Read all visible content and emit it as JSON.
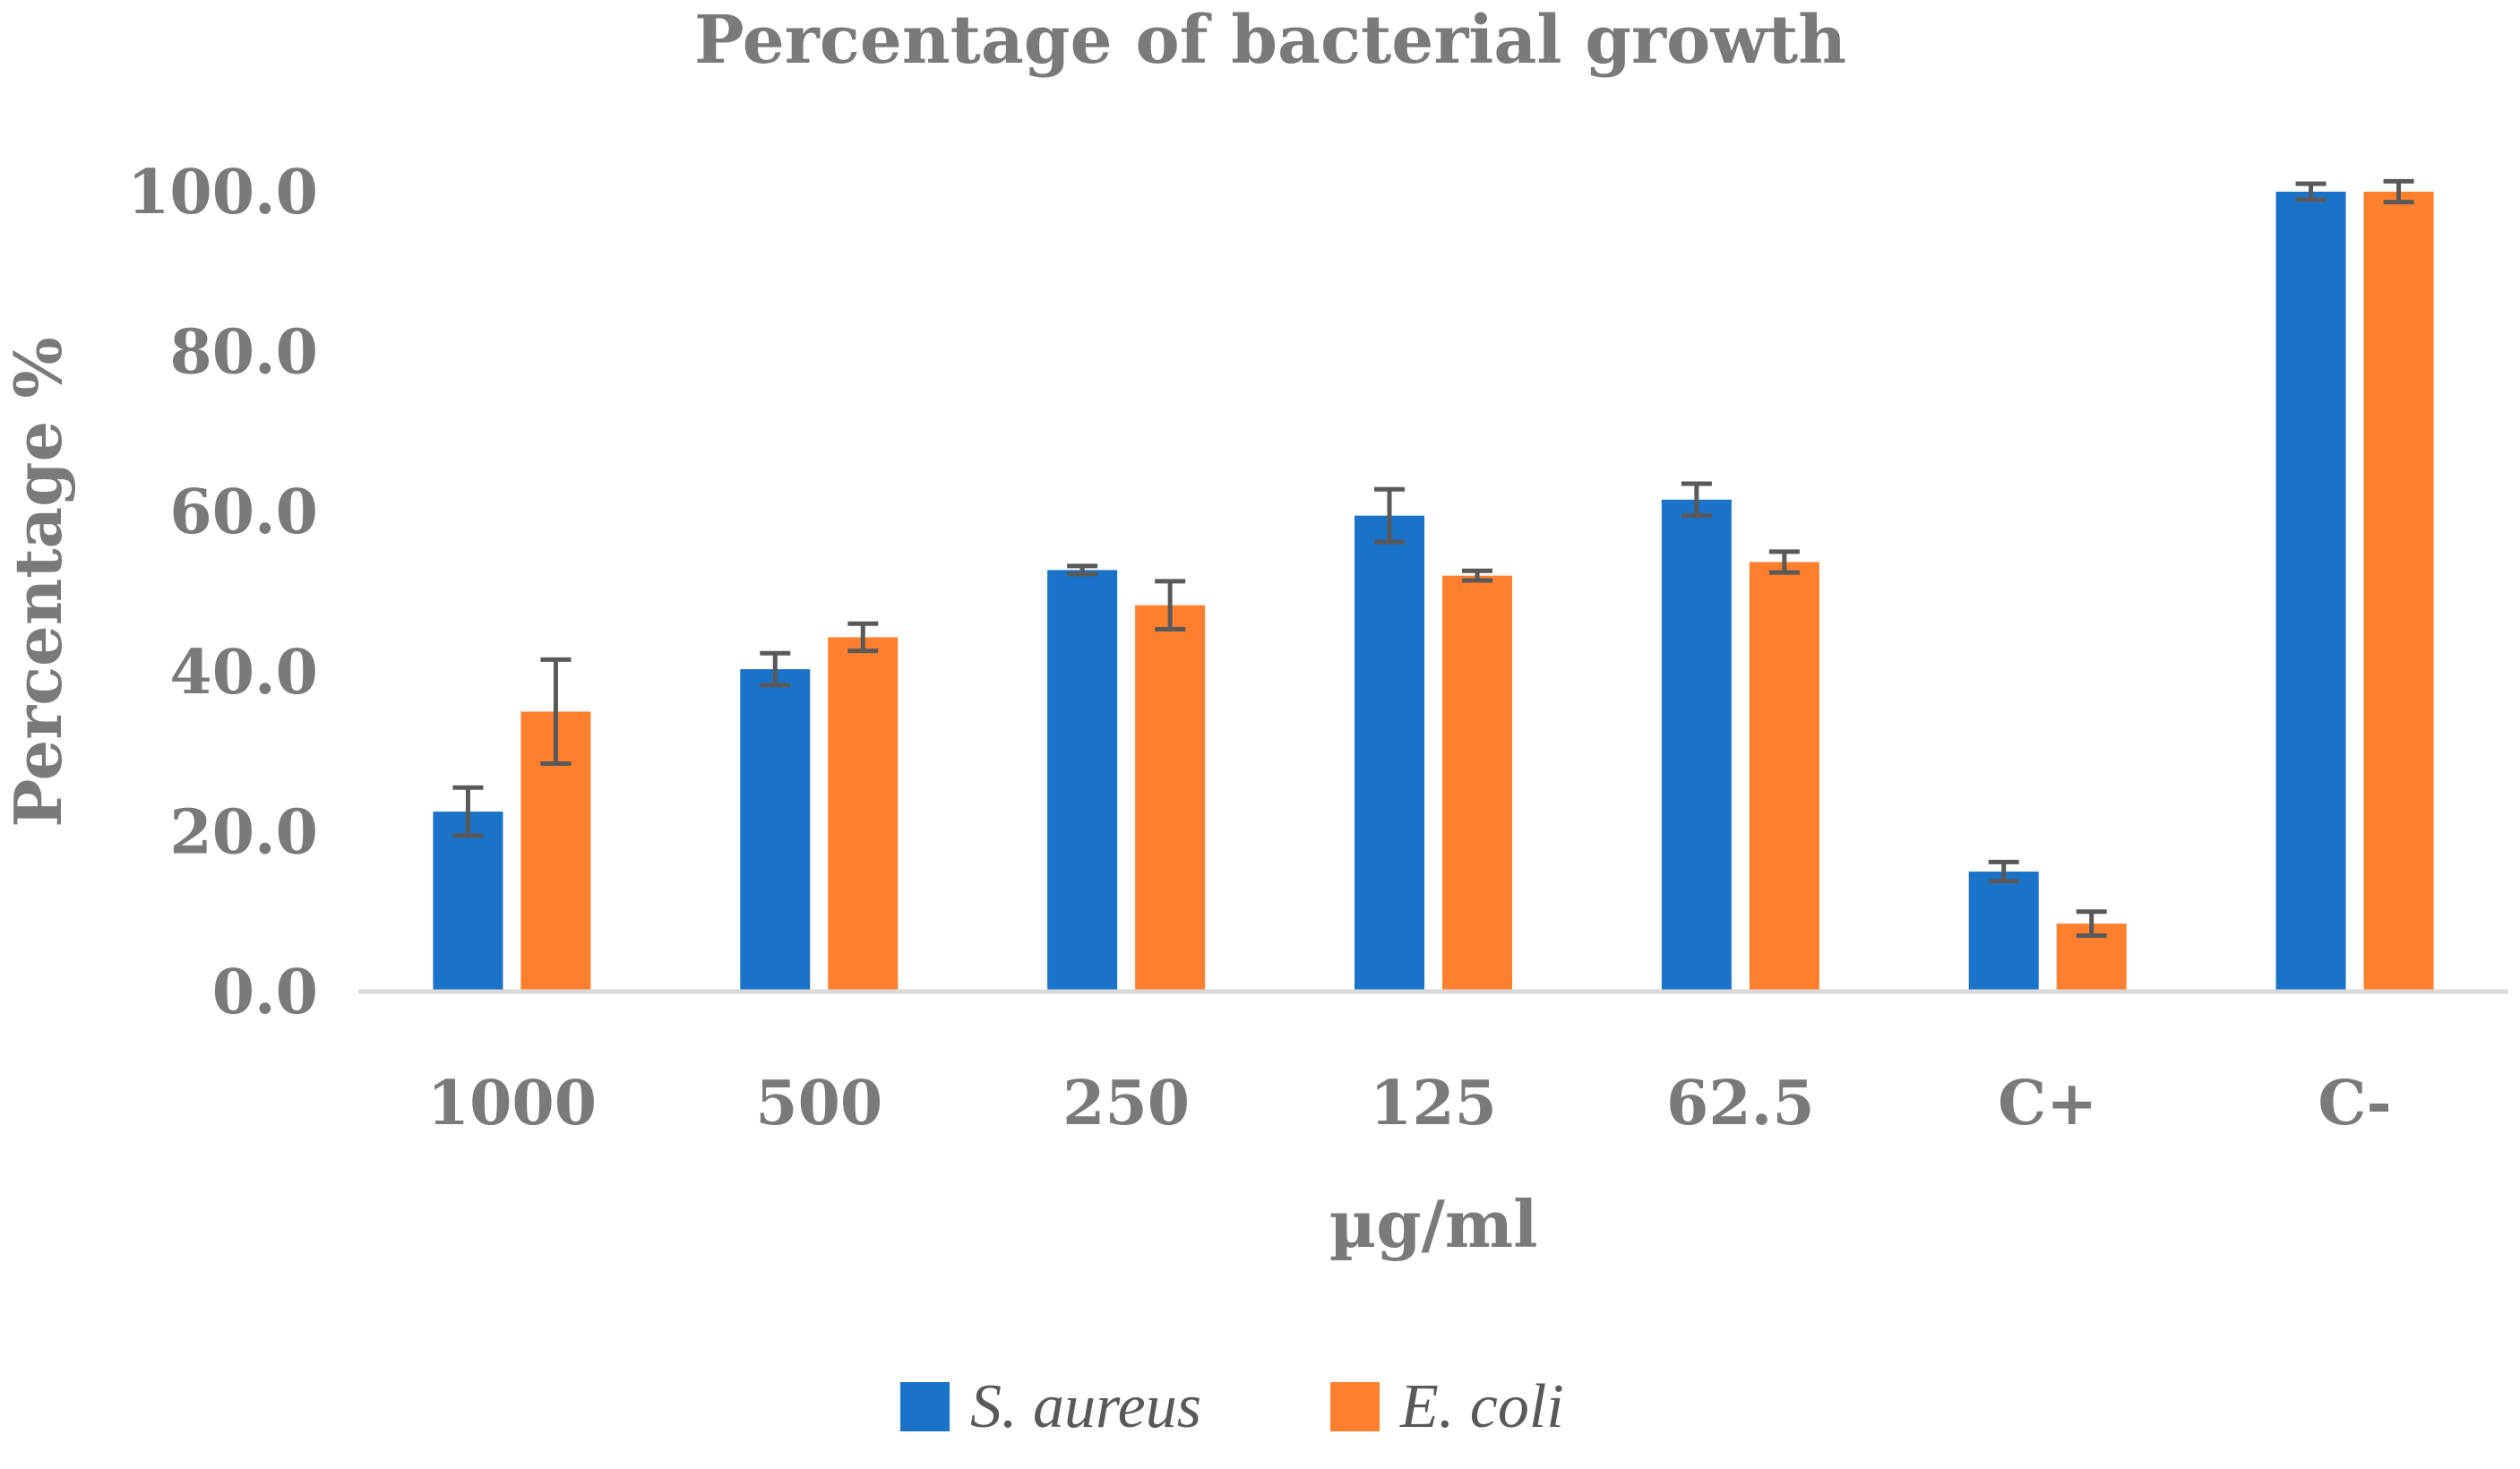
{
  "chart_data": {
    "type": "bar",
    "title": "Percentage of bacterial growth",
    "xlabel": "µg/ml",
    "ylabel": "Percentage %",
    "ylim": [
      0,
      100
    ],
    "yticks": [
      "0.0",
      "20.0",
      "40.0",
      "60.0",
      "80.0",
      "100.0"
    ],
    "categories": [
      "1000",
      "500",
      "250",
      "125",
      "62.5",
      "C+",
      "C-"
    ],
    "series": [
      {
        "name": "S. aureus",
        "color": "#1a73c9",
        "values": [
          22.5,
          40.3,
          52.7,
          59.5,
          61.5,
          15.0,
          100.0
        ],
        "errors": [
          3.0,
          2.0,
          0.5,
          3.3,
          2.0,
          1.2,
          1.0
        ]
      },
      {
        "name": "E. coli",
        "color": "#fe7f2d",
        "values": [
          35.0,
          44.3,
          48.3,
          52.0,
          53.7,
          8.5,
          100.0
        ],
        "errors": [
          6.5,
          1.7,
          3.0,
          0.6,
          1.3,
          1.5,
          1.3
        ]
      }
    ],
    "grid": false,
    "legend_position": "bottom-center",
    "error_bar_color": "#595959",
    "axis_color": "#d9d9d9"
  }
}
